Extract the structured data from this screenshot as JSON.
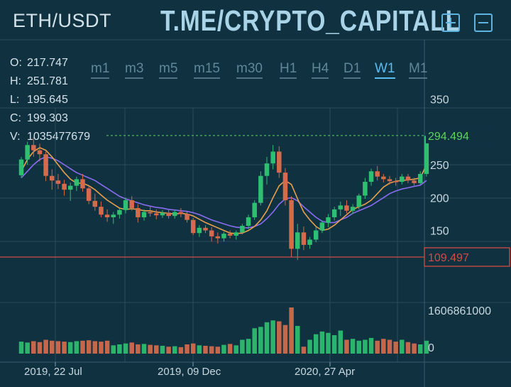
{
  "header": {
    "pair": "ETH/USDT",
    "brand": "T.ME/CRYPTO_CAPITALL",
    "zoom_in_icon": "plus-square-icon",
    "zoom_out_icon": "minus-square-icon"
  },
  "ohlc": {
    "open_label": "O:",
    "open": "217.747",
    "high_label": "H:",
    "high": "251.781",
    "low_label": "L:",
    "low": "195.645",
    "close_label": "C:",
    "close": "199.303",
    "volume_label": "V:",
    "volume": "1035477679"
  },
  "timeframes": [
    {
      "label": "m1",
      "active": false
    },
    {
      "label": "m3",
      "active": false
    },
    {
      "label": "m5",
      "active": false
    },
    {
      "label": "m15",
      "active": false
    },
    {
      "label": "m30",
      "active": false
    },
    {
      "label": "H1",
      "active": false
    },
    {
      "label": "H4",
      "active": false
    },
    {
      "label": "D1",
      "active": false
    },
    {
      "label": "W1",
      "active": true
    },
    {
      "label": "M1",
      "active": false
    }
  ],
  "colors": {
    "up": "#2fbf71",
    "down": "#d66a4c",
    "fast_ma": "#e8a04c",
    "slow_ma": "#8a6cf0",
    "current_price": "#5fd35f",
    "support_line": "#d34b45"
  },
  "chart_data": {
    "type": "candlestick",
    "price_axis": {
      "ticks": [
        350,
        250,
        200,
        150
      ]
    },
    "current_price": {
      "label": "294.494",
      "value": 294.494
    },
    "support_level": {
      "label": "109.497",
      "value": 109.497
    },
    "volume_axis": {
      "max_label": "1606861000",
      "min_label": "0"
    },
    "date_labels": [
      "2019, 22 Jul",
      "2019, 09 Dec",
      "2020, 27 Apr"
    ],
    "candles": [
      [
        234,
        262,
        230,
        258
      ],
      [
        258,
        285,
        250,
        280
      ],
      [
        280,
        292,
        262,
        272
      ],
      [
        272,
        282,
        255,
        266
      ],
      [
        266,
        270,
        225,
        233
      ],
      [
        233,
        243,
        212,
        226
      ],
      [
        226,
        236,
        213,
        221
      ],
      [
        221,
        227,
        203,
        212
      ],
      [
        212,
        223,
        195,
        218
      ],
      [
        218,
        232,
        210,
        228
      ],
      [
        228,
        236,
        209,
        214
      ],
      [
        214,
        218,
        190,
        195
      ],
      [
        195,
        206,
        180,
        186
      ],
      [
        186,
        194,
        170,
        174
      ],
      [
        174,
        182,
        163,
        170
      ],
      [
        170,
        178,
        160,
        174
      ],
      [
        174,
        183,
        168,
        181
      ],
      [
        181,
        200,
        176,
        196
      ],
      [
        196,
        202,
        180,
        184
      ],
      [
        184,
        190,
        162,
        170
      ],
      [
        170,
        182,
        165,
        178
      ],
      [
        178,
        186,
        171,
        176
      ],
      [
        176,
        182,
        167,
        173
      ],
      [
        173,
        181,
        169,
        177
      ],
      [
        177,
        181,
        168,
        172
      ],
      [
        172,
        181,
        168,
        178
      ],
      [
        178,
        184,
        170,
        175
      ],
      [
        175,
        180,
        162,
        166
      ],
      [
        166,
        169,
        143,
        146
      ],
      [
        146,
        158,
        140,
        154
      ],
      [
        154,
        158,
        146,
        150
      ],
      [
        150,
        155,
        133,
        141
      ],
      [
        141,
        147,
        130,
        138
      ],
      [
        138,
        148,
        133,
        145
      ],
      [
        145,
        150,
        138,
        142
      ],
      [
        142,
        150,
        136,
        147
      ],
      [
        147,
        160,
        144,
        157
      ],
      [
        157,
        174,
        152,
        170
      ],
      [
        170,
        196,
        166,
        192
      ],
      [
        192,
        240,
        188,
        233
      ],
      [
        233,
        262,
        220,
        252
      ],
      [
        252,
        280,
        243,
        270
      ],
      [
        270,
        278,
        230,
        238
      ],
      [
        238,
        245,
        188,
        196
      ],
      [
        196,
        202,
        110,
        122
      ],
      [
        122,
        160,
        105,
        147
      ],
      [
        147,
        156,
        120,
        128
      ],
      [
        128,
        140,
        122,
        136
      ],
      [
        136,
        155,
        132,
        150
      ],
      [
        150,
        165,
        146,
        162
      ],
      [
        162,
        175,
        155,
        170
      ],
      [
        170,
        186,
        165,
        182
      ],
      [
        182,
        194,
        172,
        188
      ],
      [
        188,
        196,
        176,
        180
      ],
      [
        180,
        190,
        175,
        186
      ],
      [
        186,
        206,
        182,
        203
      ],
      [
        203,
        230,
        198,
        224
      ],
      [
        224,
        244,
        218,
        240
      ],
      [
        240,
        248,
        226,
        232
      ],
      [
        232,
        236,
        223,
        228
      ],
      [
        228,
        233,
        220,
        225
      ],
      [
        225,
        230,
        218,
        224
      ],
      [
        224,
        236,
        220,
        232
      ],
      [
        232,
        236,
        222,
        226
      ],
      [
        226,
        230,
        218,
        222
      ],
      [
        222,
        240,
        220,
        236
      ],
      [
        236,
        306,
        232,
        294
      ]
    ],
    "volumes": [
      0.26,
      0.24,
      0.27,
      0.25,
      0.3,
      0.28,
      0.27,
      0.26,
      0.25,
      0.27,
      0.28,
      0.29,
      0.27,
      0.26,
      0.28,
      0.18,
      0.2,
      0.22,
      0.24,
      0.2,
      0.21,
      0.19,
      0.18,
      0.17,
      0.15,
      0.16,
      0.14,
      0.2,
      0.22,
      0.18,
      0.17,
      0.16,
      0.15,
      0.19,
      0.21,
      0.18,
      0.3,
      0.32,
      0.55,
      0.58,
      0.68,
      0.72,
      0.7,
      0.62,
      1.0,
      0.6,
      0.15,
      0.3,
      0.42,
      0.48,
      0.45,
      0.4,
      0.5,
      0.3,
      0.32,
      0.28,
      0.3,
      0.34,
      0.28,
      0.32,
      0.3,
      0.26,
      0.3,
      0.25,
      0.22,
      0.2,
      0.28
    ],
    "fast_ma": [
      240,
      258,
      270,
      276,
      272,
      262,
      250,
      238,
      228,
      222,
      222,
      218,
      212,
      204,
      196,
      190,
      184,
      182,
      183,
      182,
      180,
      180,
      178,
      177,
      176,
      175,
      176,
      175,
      172,
      167,
      162,
      158,
      154,
      150,
      146,
      145,
      146,
      150,
      156,
      166,
      180,
      200,
      218,
      226,
      220,
      198,
      178,
      166,
      156,
      150,
      152,
      158,
      166,
      174,
      182,
      186,
      190,
      196,
      206,
      216,
      222,
      225,
      226,
      227,
      228,
      230,
      250
    ],
    "slow_ma": [
      230,
      240,
      250,
      258,
      262,
      260,
      256,
      250,
      244,
      238,
      234,
      230,
      226,
      220,
      214,
      208,
      202,
      198,
      195,
      192,
      189,
      187,
      185,
      184,
      182,
      181,
      180,
      179,
      177,
      174,
      170,
      166,
      163,
      160,
      157,
      155,
      154,
      154,
      156,
      160,
      168,
      178,
      190,
      198,
      200,
      195,
      186,
      178,
      170,
      164,
      162,
      162,
      166,
      170,
      176,
      180,
      184,
      188,
      194,
      200,
      206,
      210,
      213,
      215,
      217,
      219,
      226
    ]
  }
}
